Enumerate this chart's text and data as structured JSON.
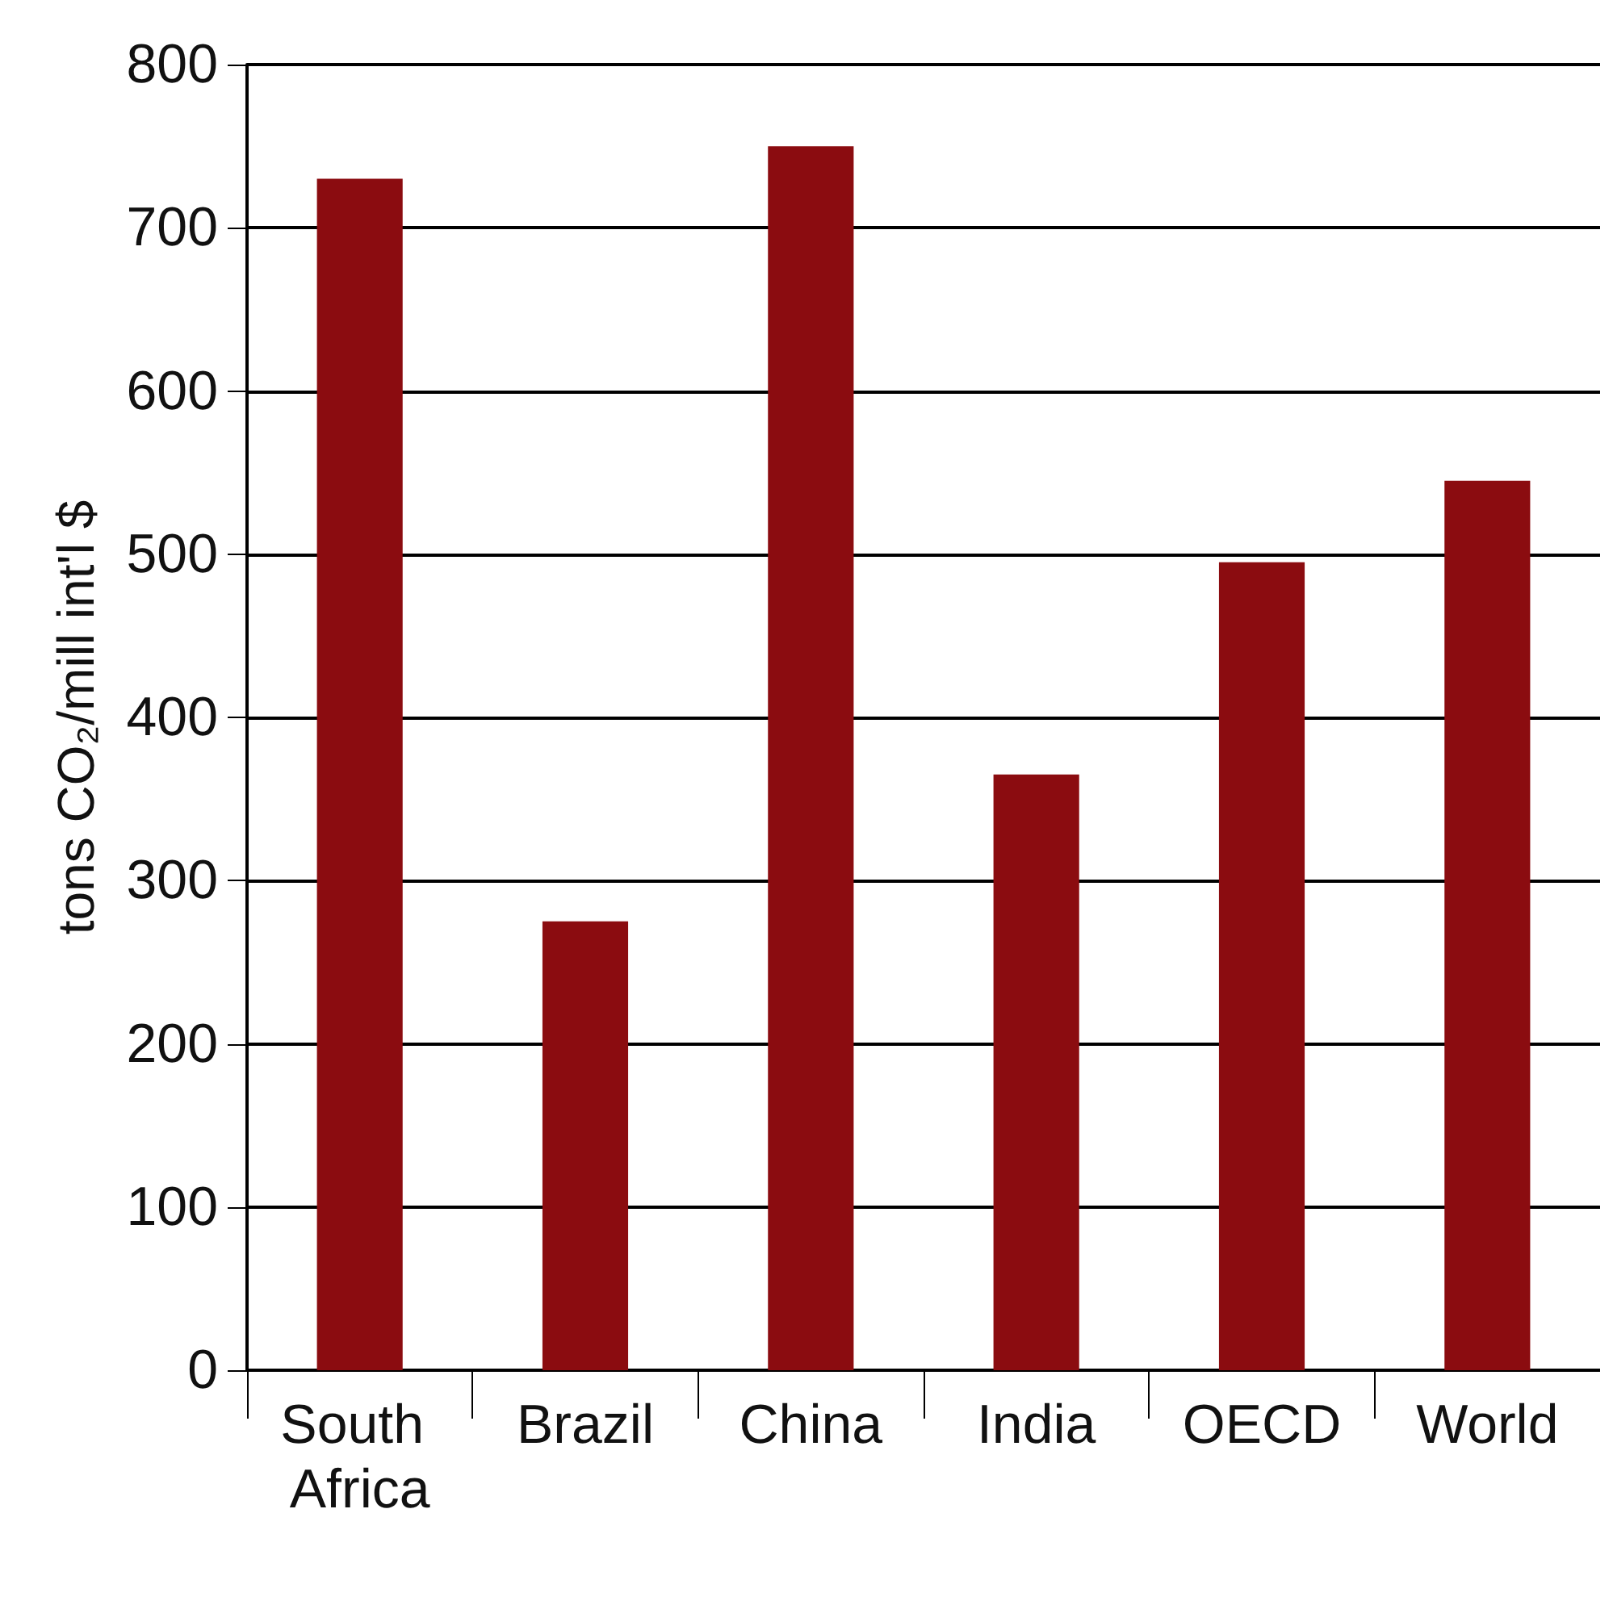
{
  "chart_data": {
    "type": "bar",
    "ylabel": "tons CO₂/mill int'l $",
    "categories": [
      "South Africa",
      "Brazil",
      "China",
      "India",
      "OECD",
      "World"
    ],
    "values": [
      730,
      275,
      750,
      365,
      495,
      545
    ],
    "color": "#8b0c10",
    "ylim": [
      0,
      800
    ],
    "yticks": [
      0,
      100,
      200,
      300,
      400,
      500,
      600,
      700,
      800
    ],
    "grid": "y"
  }
}
